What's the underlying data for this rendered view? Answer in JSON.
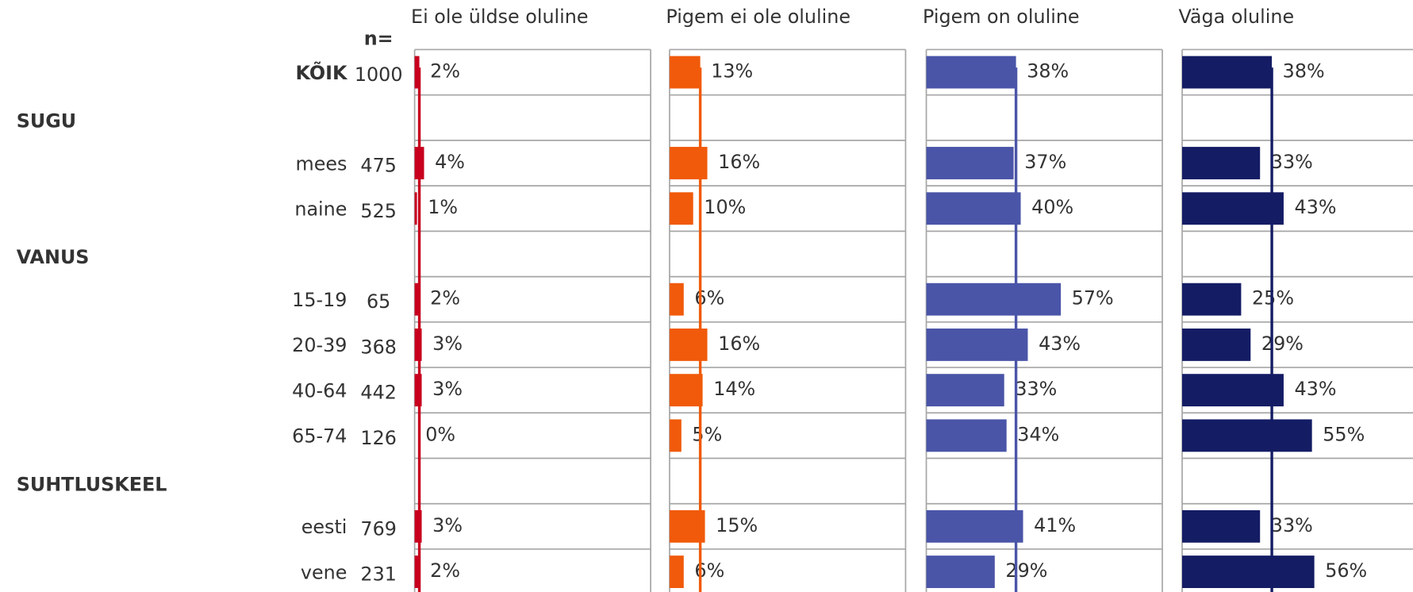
{
  "chart_data": {
    "type": "bar",
    "n_label": "n=",
    "categories": [
      "KÕIK",
      null,
      "mees",
      "naine",
      null,
      "15-19",
      "20-39",
      "40-64",
      "65-74",
      null,
      "eesti",
      "vene"
    ],
    "row_groups": [
      null,
      "SUGU",
      null,
      null,
      "VANUS",
      null,
      null,
      null,
      null,
      "SUHTLUSKEEL",
      null,
      null
    ],
    "n": [
      1000,
      null,
      475,
      525,
      null,
      65,
      368,
      442,
      126,
      null,
      769,
      231
    ],
    "xlim": [
      0,
      100
    ],
    "series": [
      {
        "name": "Ei ole üldse oluline",
        "color": "#c8001e",
        "values": [
          2,
          null,
          4,
          1,
          null,
          2,
          3,
          3,
          0,
          null,
          3,
          2
        ],
        "value_labels": [
          "2%",
          null,
          "4%",
          "1%",
          null,
          "2%",
          "3%",
          "3%",
          "0%",
          null,
          "3%",
          "2%"
        ]
      },
      {
        "name": "Pigem ei ole oluline",
        "color": "#f05a0a",
        "values": [
          13,
          null,
          16,
          10,
          null,
          6,
          16,
          14,
          5,
          null,
          15,
          6
        ],
        "value_labels": [
          "13%",
          null,
          "16%",
          "10%",
          null,
          "6%",
          "16%",
          "14%",
          "5%",
          null,
          "15%",
          "6%"
        ]
      },
      {
        "name": "Pigem on oluline",
        "color": "#4a55a8",
        "values": [
          38,
          null,
          37,
          40,
          null,
          57,
          43,
          33,
          34,
          null,
          41,
          29
        ],
        "value_labels": [
          "38%",
          null,
          "37%",
          "40%",
          null,
          "57%",
          "43%",
          "33%",
          "34%",
          null,
          "41%",
          "29%"
        ]
      },
      {
        "name": "Väga oluline",
        "color": "#141c64",
        "values": [
          38,
          null,
          33,
          43,
          null,
          25,
          29,
          43,
          55,
          null,
          33,
          56
        ],
        "value_labels": [
          "38%",
          null,
          "33%",
          "43%",
          null,
          "25%",
          "29%",
          "43%",
          "55%",
          null,
          "33%",
          "56%"
        ],
        "label_colors": [
          "#333333",
          null,
          "#0070c0",
          "#ff0000",
          null,
          "#0070c0",
          "#0070c0",
          "#ff0000",
          "#ff0000",
          null,
          "#0070c0",
          "#ff0000"
        ]
      }
    ]
  }
}
